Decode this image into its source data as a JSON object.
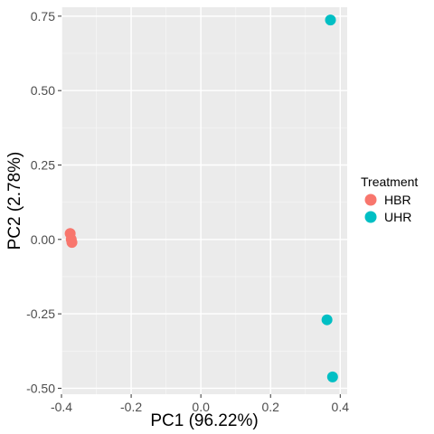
{
  "chart_data": {
    "type": "scatter",
    "title": "",
    "xlabel": "PC1 (96.22%)",
    "ylabel": "PC2 (2.78%)",
    "xlim": [
      -0.4,
      0.42
    ],
    "ylim": [
      -0.52,
      0.78
    ],
    "x_ticks": [
      -0.4,
      -0.2,
      0.0,
      0.2,
      0.4
    ],
    "x_tick_labels": [
      "-0.4",
      "-0.2",
      "0.0",
      "0.2",
      "0.4"
    ],
    "y_ticks": [
      -0.5,
      -0.25,
      0.0,
      0.25,
      0.5,
      0.75
    ],
    "y_tick_labels": [
      "-0.50",
      "-0.25",
      "0.00",
      "0.25",
      "0.50",
      "0.75"
    ],
    "grid": true,
    "legend": {
      "title": "Treatment",
      "placement": "right"
    },
    "series": [
      {
        "name": "HBR",
        "color": "#F8766D",
        "points": [
          {
            "x": -0.375,
            "y": 0.02
          },
          {
            "x": -0.372,
            "y": 0.0
          },
          {
            "x": -0.37,
            "y": -0.01
          }
        ]
      },
      {
        "name": "UHR",
        "color": "#00BFC4",
        "points": [
          {
            "x": 0.372,
            "y": 0.737
          },
          {
            "x": 0.362,
            "y": -0.27
          },
          {
            "x": 0.378,
            "y": -0.462
          }
        ]
      }
    ]
  }
}
